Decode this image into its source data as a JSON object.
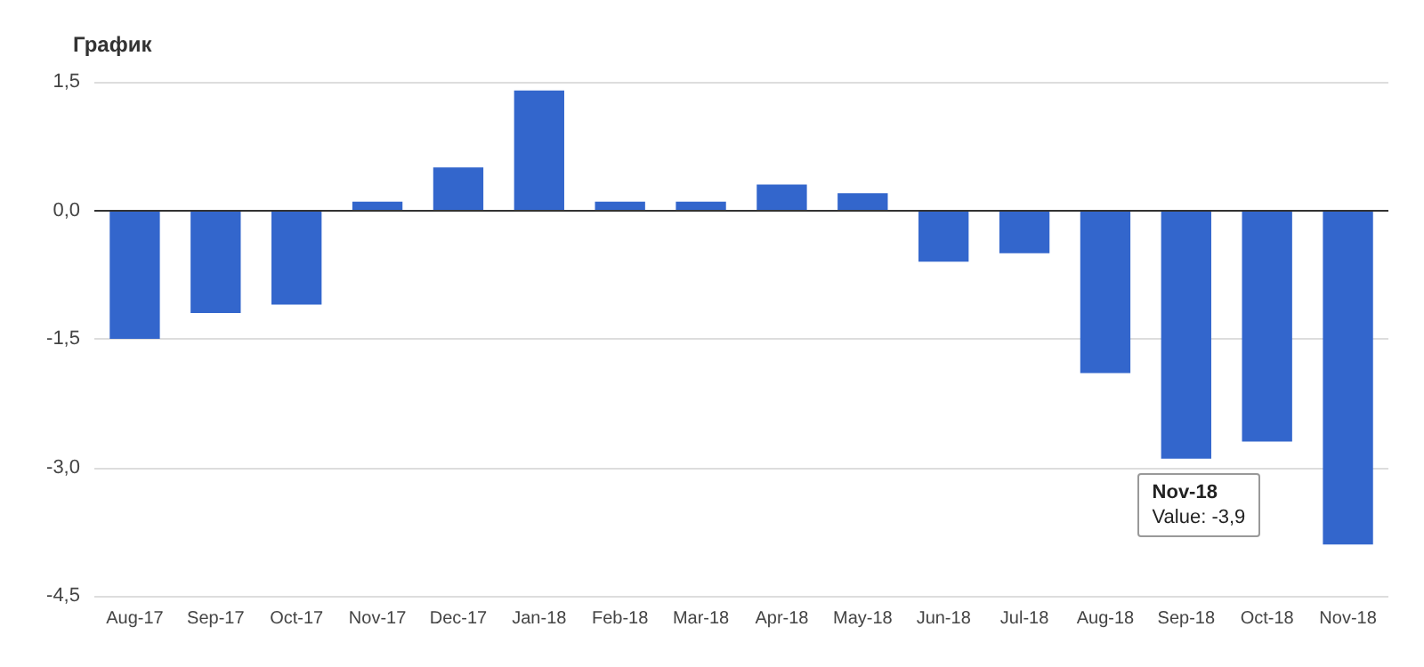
{
  "chart_data": {
    "type": "bar",
    "title": "График",
    "categories": [
      "Aug-17",
      "Sep-17",
      "Oct-17",
      "Nov-17",
      "Dec-17",
      "Jan-18",
      "Feb-18",
      "Mar-18",
      "Apr-18",
      "May-18",
      "Jun-18",
      "Jul-18",
      "Aug-18",
      "Sep-18",
      "Oct-18",
      "Nov-18"
    ],
    "values": [
      -1.5,
      -1.2,
      -1.1,
      0.1,
      0.5,
      1.4,
      0.1,
      0.1,
      0.3,
      0.2,
      -0.6,
      -0.5,
      -1.9,
      -2.9,
      -2.7,
      -3.9
    ],
    "color": "#3366cc",
    "ylim": [
      -4.5,
      1.5
    ],
    "yticks": [
      {
        "value": -4.5,
        "label": "-4,5"
      },
      {
        "value": -3,
        "label": "-3,0"
      },
      {
        "value": -1.5,
        "label": "-1,5"
      },
      {
        "value": 0,
        "label": "0,0"
      },
      {
        "value": 1.5,
        "label": "1,5"
      }
    ],
    "grid": "y",
    "annotations": [
      "Nov-18",
      "Value: -3,9"
    ]
  }
}
